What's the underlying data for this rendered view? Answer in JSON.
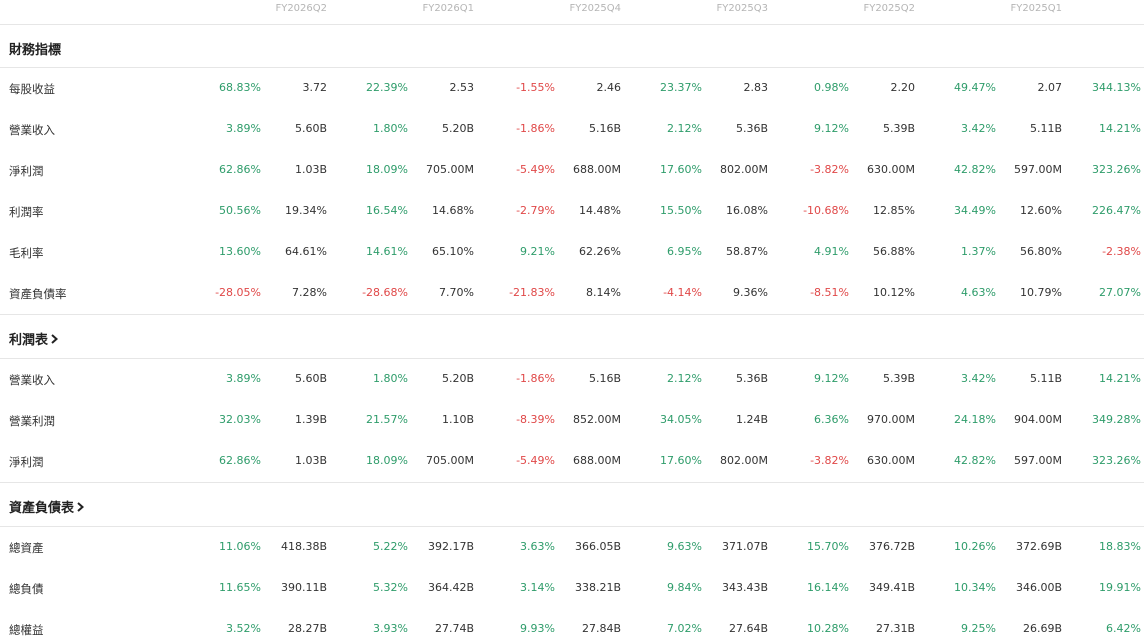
{
  "periods": [
    "FY2026Q2",
    "FY2026Q1",
    "FY2025Q4",
    "FY2025Q3",
    "FY2025Q2",
    "FY2025Q1"
  ],
  "colors": {
    "positive": "#2e9c6a",
    "negative": "#e04848"
  },
  "sections": [
    {
      "title": "財務指標",
      "has_chevron": false,
      "rows": [
        {
          "label": "每股收益",
          "cells": [
            [
              "68.83%",
              "3.72"
            ],
            [
              "22.39%",
              "2.53"
            ],
            [
              "-1.55%",
              "2.46"
            ],
            [
              "23.37%",
              "2.83"
            ],
            [
              "0.98%",
              "2.20"
            ],
            [
              "49.47%",
              "2.07"
            ]
          ],
          "last": "344.13%"
        },
        {
          "label": "營業收入",
          "cells": [
            [
              "3.89%",
              "5.60B"
            ],
            [
              "1.80%",
              "5.20B"
            ],
            [
              "-1.86%",
              "5.16B"
            ],
            [
              "2.12%",
              "5.36B"
            ],
            [
              "9.12%",
              "5.39B"
            ],
            [
              "3.42%",
              "5.11B"
            ]
          ],
          "last": "14.21%"
        },
        {
          "label": "淨利潤",
          "cells": [
            [
              "62.86%",
              "1.03B"
            ],
            [
              "18.09%",
              "705.00M"
            ],
            [
              "-5.49%",
              "688.00M"
            ],
            [
              "17.60%",
              "802.00M"
            ],
            [
              "-3.82%",
              "630.00M"
            ],
            [
              "42.82%",
              "597.00M"
            ]
          ],
          "last": "323.26%"
        },
        {
          "label": "利潤率",
          "cells": [
            [
              "50.56%",
              "19.34%"
            ],
            [
              "16.54%",
              "14.68%"
            ],
            [
              "-2.79%",
              "14.48%"
            ],
            [
              "15.50%",
              "16.08%"
            ],
            [
              "-10.68%",
              "12.85%"
            ],
            [
              "34.49%",
              "12.60%"
            ]
          ],
          "last": "226.47%"
        },
        {
          "label": "毛利率",
          "cells": [
            [
              "13.60%",
              "64.61%"
            ],
            [
              "14.61%",
              "65.10%"
            ],
            [
              "9.21%",
              "62.26%"
            ],
            [
              "6.95%",
              "58.87%"
            ],
            [
              "4.91%",
              "56.88%"
            ],
            [
              "1.37%",
              "56.80%"
            ]
          ],
          "last": "-2.38%"
        },
        {
          "label": "資產負債率",
          "cells": [
            [
              "-28.05%",
              "7.28%"
            ],
            [
              "-28.68%",
              "7.70%"
            ],
            [
              "-21.83%",
              "8.14%"
            ],
            [
              "-4.14%",
              "9.36%"
            ],
            [
              "-8.51%",
              "10.12%"
            ],
            [
              "4.63%",
              "10.79%"
            ]
          ],
          "last": "27.07%"
        }
      ]
    },
    {
      "title": "利潤表",
      "has_chevron": true,
      "rows": [
        {
          "label": "營業收入",
          "cells": [
            [
              "3.89%",
              "5.60B"
            ],
            [
              "1.80%",
              "5.20B"
            ],
            [
              "-1.86%",
              "5.16B"
            ],
            [
              "2.12%",
              "5.36B"
            ],
            [
              "9.12%",
              "5.39B"
            ],
            [
              "3.42%",
              "5.11B"
            ]
          ],
          "last": "14.21%"
        },
        {
          "label": "營業利潤",
          "cells": [
            [
              "32.03%",
              "1.39B"
            ],
            [
              "21.57%",
              "1.10B"
            ],
            [
              "-8.39%",
              "852.00M"
            ],
            [
              "34.05%",
              "1.24B"
            ],
            [
              "6.36%",
              "970.00M"
            ],
            [
              "24.18%",
              "904.00M"
            ]
          ],
          "last": "349.28%"
        },
        {
          "label": "淨利潤",
          "cells": [
            [
              "62.86%",
              "1.03B"
            ],
            [
              "18.09%",
              "705.00M"
            ],
            [
              "-5.49%",
              "688.00M"
            ],
            [
              "17.60%",
              "802.00M"
            ],
            [
              "-3.82%",
              "630.00M"
            ],
            [
              "42.82%",
              "597.00M"
            ]
          ],
          "last": "323.26%"
        }
      ]
    },
    {
      "title": "資產負債表",
      "has_chevron": true,
      "rows": [
        {
          "label": "總資產",
          "cells": [
            [
              "11.06%",
              "418.38B"
            ],
            [
              "5.22%",
              "392.17B"
            ],
            [
              "3.63%",
              "366.05B"
            ],
            [
              "9.63%",
              "371.07B"
            ],
            [
              "15.70%",
              "376.72B"
            ],
            [
              "10.26%",
              "372.69B"
            ]
          ],
          "last": "18.83%"
        },
        {
          "label": "總負債",
          "cells": [
            [
              "11.65%",
              "390.11B"
            ],
            [
              "5.32%",
              "364.42B"
            ],
            [
              "3.14%",
              "338.21B"
            ],
            [
              "9.84%",
              "343.43B"
            ],
            [
              "16.14%",
              "349.41B"
            ],
            [
              "10.34%",
              "346.00B"
            ]
          ],
          "last": "19.91%"
        },
        {
          "label": "總權益",
          "cells": [
            [
              "3.52%",
              "28.27B"
            ],
            [
              "3.93%",
              "27.74B"
            ],
            [
              "9.93%",
              "27.84B"
            ],
            [
              "7.02%",
              "27.64B"
            ],
            [
              "10.28%",
              "27.31B"
            ],
            [
              "9.25%",
              "26.69B"
            ]
          ],
          "last": "6.42%"
        }
      ]
    }
  ]
}
